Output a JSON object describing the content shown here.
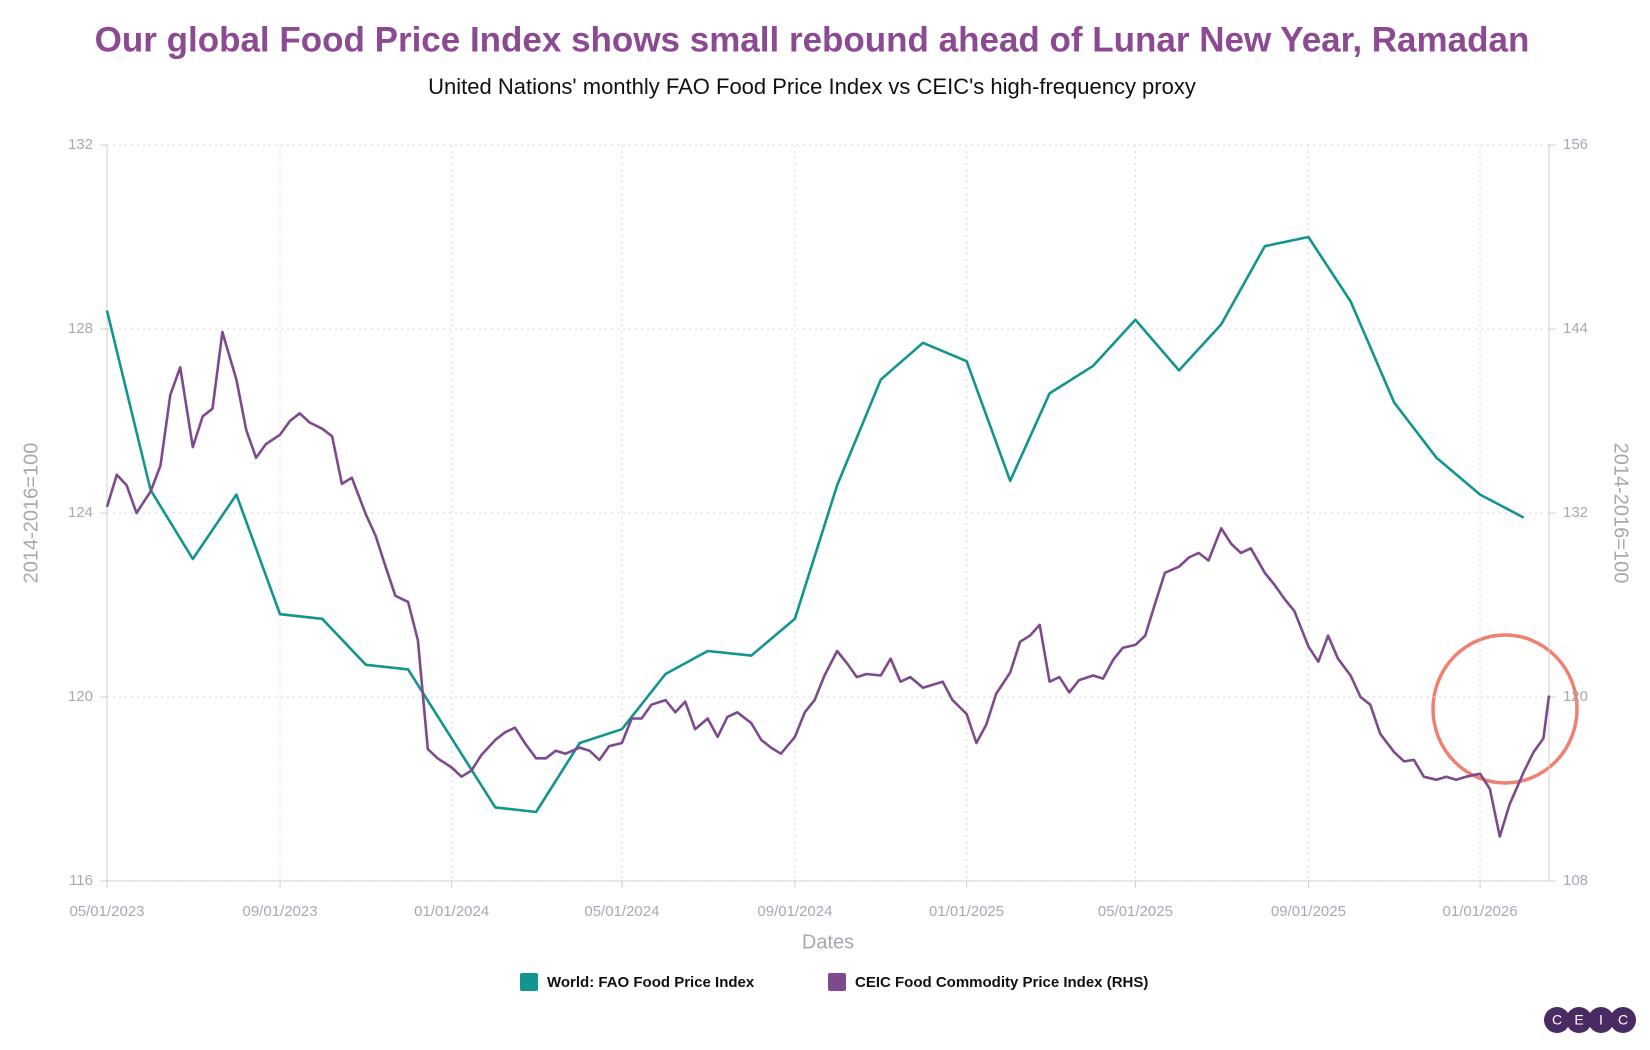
{
  "chart_data": {
    "type": "line",
    "title": "Our global Food Price Index shows small rebound ahead of Lunar New Year, Ramadan",
    "subtitle": "United Nations' monthly FAO Food Price Index vs CEIC's high-frequency proxy",
    "x_label": "Dates",
    "y_label": "2014-2016=100",
    "y2_label": "2014-2016=100",
    "xlim": [
      "05/01/2023",
      "02/19/2026"
    ],
    "xticks": [
      "05/01/2023",
      "09/01/2023",
      "01/01/2024",
      "05/01/2024",
      "09/01/2024",
      "01/01/2025",
      "05/01/2025",
      "09/01/2025",
      "01/01/2026"
    ],
    "ylim": [
      116,
      132
    ],
    "yticks": [
      116,
      120,
      124,
      128,
      132
    ],
    "y2lim": [
      108,
      156
    ],
    "y2ticks": [
      108,
      120,
      132,
      144,
      156
    ],
    "grid": true,
    "legend": "bottom",
    "logo": [
      "C",
      "E",
      "I",
      "C"
    ],
    "series": [
      {
        "name": "World: FAO Food Price Index",
        "color": "#12958f",
        "x": [
          "05/01/2023",
          "06/01/2023",
          "07/01/2023",
          "08/01/2023",
          "09/01/2023",
          "10/01/2023",
          "11/01/2023",
          "12/01/2023",
          "01/01/2024",
          "02/01/2024",
          "03/01/2024",
          "04/01/2024",
          "05/01/2024",
          "06/01/2024",
          "07/01/2024",
          "08/01/2024",
          "09/01/2024",
          "10/01/2024",
          "11/01/2024",
          "12/01/2024",
          "01/01/2025",
          "02/01/2025",
          "03/01/2025",
          "04/01/2025",
          "05/01/2025",
          "06/01/2025",
          "07/01/2025",
          "08/01/2025",
          "09/01/2025",
          "10/01/2025",
          "11/01/2025",
          "12/01/2025",
          "01/01/2026",
          "02/01/2026"
        ],
        "values": [
          128.4,
          124.5,
          123.0,
          124.4,
          121.8,
          121.7,
          120.7,
          120.6,
          119.1,
          117.6,
          117.5,
          119.0,
          119.3,
          120.5,
          121.0,
          120.9,
          121.7,
          124.6,
          126.9,
          127.7,
          127.3,
          124.7,
          126.6,
          127.2,
          128.2,
          127.1,
          128.1,
          129.8,
          130.0,
          128.6,
          126.4,
          125.2,
          124.4,
          123.9
        ]
      },
      {
        "name": "CEIC Food Commodity Price Index (RHS)",
        "color": "#7e4a8e",
        "axis": "y2",
        "x": [
          "05/01/2023",
          "05/08/2023",
          "05/15/2023",
          "05/22/2023",
          "06/01/2023",
          "06/08/2023",
          "06/15/2023",
          "06/22/2023",
          "07/01/2023",
          "07/08/2023",
          "07/15/2023",
          "07/22/2023",
          "08/01/2023",
          "08/08/2023",
          "08/15/2023",
          "08/22/2023",
          "09/01/2023",
          "09/08/2023",
          "09/15/2023",
          "09/22/2023",
          "10/01/2023",
          "10/08/2023",
          "10/15/2023",
          "10/22/2023",
          "11/01/2023",
          "11/08/2023",
          "11/15/2023",
          "11/22/2023",
          "12/01/2023",
          "12/08/2023",
          "12/15/2023",
          "12/22/2023",
          "01/01/2024",
          "01/08/2024",
          "01/15/2024",
          "01/22/2024",
          "02/01/2024",
          "02/08/2024",
          "02/15/2024",
          "02/22/2024",
          "03/01/2024",
          "03/08/2024",
          "03/15/2024",
          "03/22/2024",
          "04/01/2024",
          "04/08/2024",
          "04/15/2024",
          "04/22/2024",
          "05/01/2024",
          "05/08/2024",
          "05/15/2024",
          "05/22/2024",
          "06/01/2024",
          "06/08/2024",
          "06/15/2024",
          "06/22/2024",
          "07/01/2024",
          "07/08/2024",
          "07/15/2024",
          "07/22/2024",
          "08/01/2024",
          "08/08/2024",
          "08/15/2024",
          "08/22/2024",
          "09/01/2024",
          "09/08/2024",
          "09/15/2024",
          "09/22/2024",
          "10/01/2024",
          "10/08/2024",
          "10/15/2024",
          "10/22/2024",
          "11/01/2024",
          "11/08/2024",
          "11/15/2024",
          "11/22/2024",
          "12/01/2024",
          "12/08/2024",
          "12/15/2024",
          "12/22/2024",
          "01/01/2025",
          "01/08/2025",
          "01/15/2025",
          "01/22/2025",
          "02/01/2025",
          "02/08/2025",
          "02/15/2025",
          "02/22/2025",
          "03/01/2025",
          "03/08/2025",
          "03/15/2025",
          "03/22/2025",
          "04/01/2025",
          "04/08/2025",
          "04/15/2025",
          "04/22/2025",
          "05/01/2025",
          "05/08/2025",
          "05/15/2025",
          "05/22/2025",
          "06/01/2025",
          "06/08/2025",
          "06/15/2025",
          "06/22/2025",
          "07/01/2025",
          "07/08/2025",
          "07/15/2025",
          "07/22/2025",
          "08/01/2025",
          "08/08/2025",
          "08/15/2025",
          "08/22/2025",
          "09/01/2025",
          "09/08/2025",
          "09/15/2025",
          "09/22/2025",
          "10/01/2025",
          "10/08/2025",
          "10/15/2025",
          "10/22/2025",
          "11/01/2025",
          "11/08/2025",
          "11/15/2025",
          "11/22/2025",
          "12/01/2025",
          "12/08/2025",
          "12/15/2025",
          "12/22/2025",
          "01/01/2026",
          "01/08/2026",
          "01/15/2026",
          "01/22/2026",
          "02/01/2026",
          "02/08/2026",
          "02/15/2026",
          "02/19/2026"
        ],
        "values": [
          132.4,
          134.5,
          133.8,
          132.0,
          133.4,
          135.1,
          139.7,
          141.5,
          136.3,
          138.3,
          138.8,
          143.8,
          140.7,
          137.4,
          135.6,
          136.5,
          137.1,
          138.0,
          138.5,
          137.9,
          137.5,
          137.0,
          133.9,
          134.3,
          131.9,
          130.5,
          128.5,
          126.6,
          126.2,
          123.7,
          116.6,
          116.0,
          115.4,
          114.8,
          115.2,
          116.2,
          117.2,
          117.7,
          118.0,
          117.0,
          116.0,
          116.0,
          116.5,
          116.3,
          116.7,
          116.5,
          115.9,
          116.8,
          117.0,
          118.6,
          118.6,
          119.5,
          119.8,
          119.0,
          119.7,
          117.9,
          118.6,
          117.4,
          118.7,
          119.0,
          118.3,
          117.2,
          116.7,
          116.3,
          117.4,
          119.0,
          119.8,
          121.4,
          123.0,
          122.2,
          121.3,
          121.5,
          121.4,
          122.5,
          121.0,
          121.3,
          120.6,
          120.8,
          121.0,
          119.8,
          118.9,
          117.0,
          118.2,
          120.2,
          121.6,
          123.6,
          124.0,
          124.7,
          121.0,
          121.3,
          120.3,
          121.1,
          121.4,
          121.2,
          122.4,
          123.2,
          123.4,
          124.0,
          126.1,
          128.1,
          128.5,
          129.1,
          129.4,
          128.9,
          131.0,
          130.0,
          129.4,
          129.7,
          128.1,
          127.3,
          126.4,
          125.6,
          123.3,
          122.3,
          124.0,
          122.5,
          121.4,
          120.0,
          119.5,
          117.6,
          116.4,
          115.8,
          115.9,
          114.8,
          114.6,
          114.8,
          114.6,
          114.8,
          115.0,
          114.0,
          110.9,
          113.0,
          115.1,
          116.4,
          117.3,
          120.1
        ]
      }
    ]
  }
}
